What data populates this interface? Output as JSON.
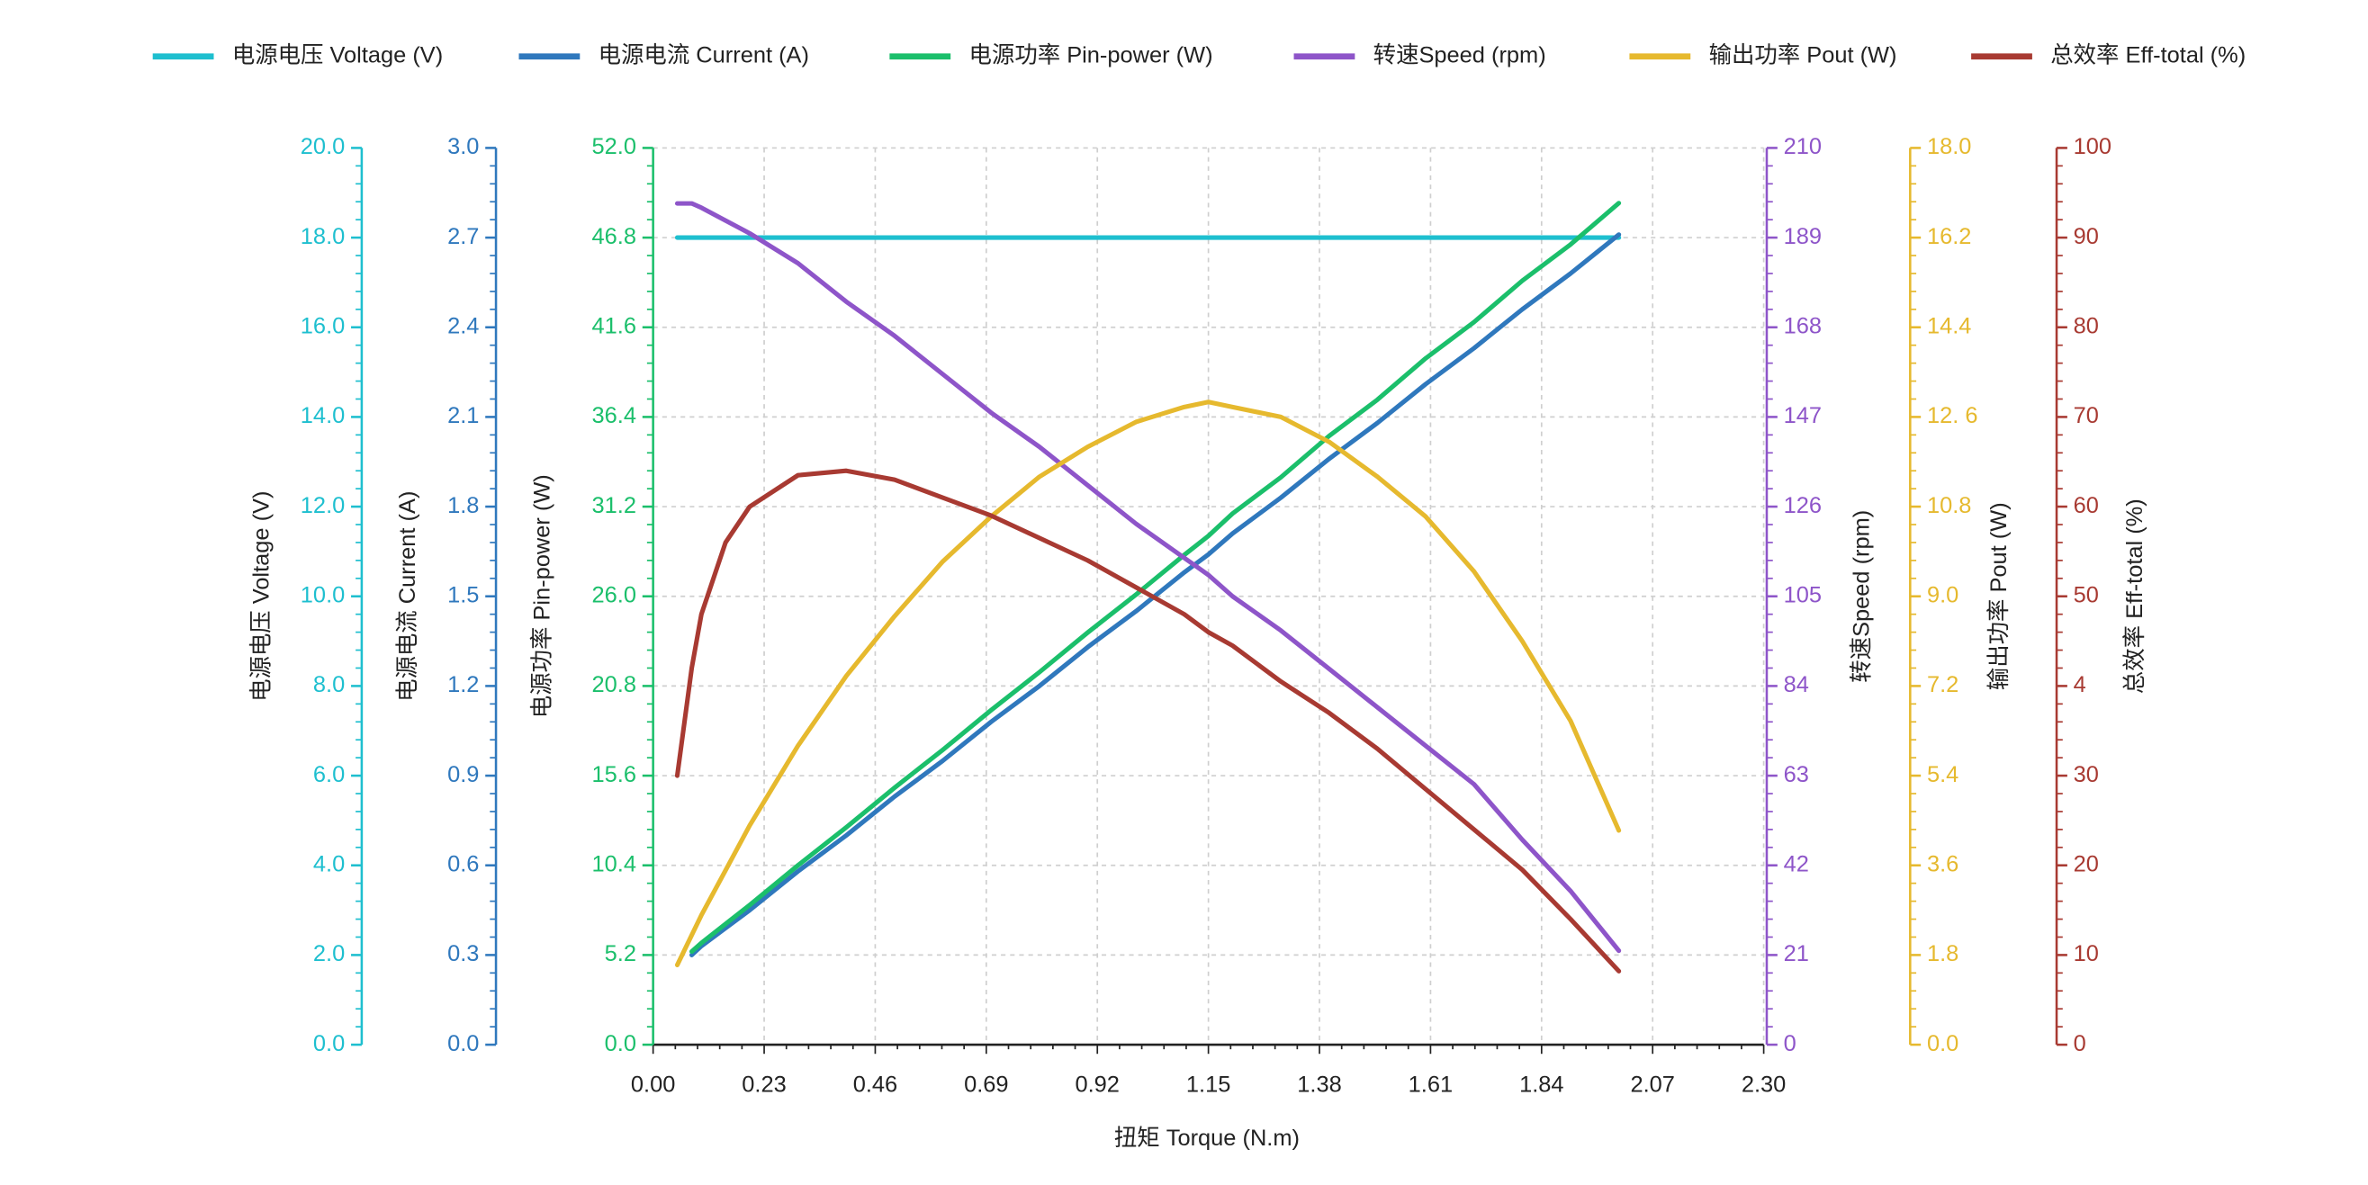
{
  "chart_data": {
    "type": "line",
    "x_label": "扭矩 Torque (N.m)",
    "x": [
      0.05,
      0.08,
      0.1,
      0.15,
      0.2,
      0.3,
      0.4,
      0.5,
      0.6,
      0.7,
      0.8,
      0.9,
      1.0,
      1.1,
      1.15,
      1.2,
      1.3,
      1.4,
      1.5,
      1.6,
      1.7,
      1.8,
      1.9,
      2.0
    ],
    "xlim": [
      0,
      2.3
    ],
    "xticks": [
      {
        "value": 0,
        "label": "0.00"
      },
      0.23,
      0.46,
      0.69,
      0.92,
      1.15,
      1.38,
      1.61,
      1.84,
      2.07,
      {
        "value": 2.3,
        "label": "2.30"
      }
    ],
    "grid": true,
    "legend": "top",
    "series": [
      {
        "name": "电源电压 Voltage (V)",
        "color": "#1ebfcf",
        "axis_label": "电源电压 Voltage (V)",
        "ylim": [
          0,
          20
        ],
        "yticks": [
          {
            "value": 0,
            "label": "0.0"
          },
          {
            "value": 2,
            "label": "2.0"
          },
          {
            "value": 4,
            "label": "4.0"
          },
          {
            "value": 6,
            "label": "6.0"
          },
          {
            "value": 8,
            "label": "8.0"
          },
          {
            "value": 10,
            "label": "10.0"
          },
          {
            "value": 12,
            "label": "12.0"
          },
          {
            "value": 14,
            "label": "14.0"
          },
          {
            "value": 16,
            "label": "16.0"
          },
          {
            "value": 18,
            "label": "18.0"
          },
          {
            "value": 20,
            "label": "20.0"
          }
        ],
        "values": [
          18,
          18,
          18,
          18,
          18,
          18,
          18,
          18,
          18,
          18,
          18,
          18,
          18,
          18,
          18,
          18,
          18,
          18,
          18,
          18,
          18,
          18,
          18,
          18
        ]
      },
      {
        "name": "电源电流 Current (A)",
        "color": "#2f78bd",
        "axis_label": "电源电流 Current (A)",
        "ylim": [
          0,
          3
        ],
        "yticks": [
          {
            "value": 0,
            "label": "0.0"
          },
          0.3,
          0.6,
          0.9,
          1.2,
          1.5,
          1.8,
          2.1,
          2.4,
          2.7,
          {
            "value": 3,
            "label": "3.0"
          }
        ],
        "values": [
          null,
          0.3,
          0.33,
          0.39,
          0.45,
          0.58,
          0.7,
          0.83,
          0.95,
          1.08,
          1.2,
          1.33,
          1.45,
          1.58,
          1.64,
          1.71,
          1.83,
          1.96,
          2.08,
          2.21,
          2.33,
          2.46,
          2.58,
          2.71
        ]
      },
      {
        "name": "电源功率 Pin-power (W)",
        "color": "#1bbf6b",
        "axis_label": "电源功率 Pin-power (W)",
        "ylim": [
          0,
          52
        ],
        "yticks": [
          {
            "value": 0,
            "label": "0.0"
          },
          5.2,
          10.4,
          15.6,
          20.8,
          {
            "value": 26,
            "label": "26.0"
          },
          31.2,
          36.4,
          41.6,
          46.8,
          {
            "value": 52,
            "label": "52.0"
          }
        ],
        "values": [
          null,
          5.4,
          5.9,
          7.0,
          8.1,
          10.4,
          12.6,
          14.9,
          17.1,
          19.4,
          21.6,
          23.9,
          26.1,
          28.4,
          29.5,
          30.8,
          32.9,
          35.3,
          37.4,
          39.8,
          41.9,
          44.3,
          46.4,
          48.8
        ]
      },
      {
        "name": "转速Speed (rpm)",
        "color": "#8e55c9",
        "axis_label": "转速Speed (rpm)",
        "ylim": [
          0,
          210
        ],
        "yticks": [
          0,
          21,
          42,
          63,
          84,
          105,
          126,
          147,
          168,
          189,
          210
        ],
        "values": [
          197,
          197,
          196,
          193,
          190,
          183,
          174,
          166,
          157,
          148,
          140,
          131,
          122,
          114,
          110,
          105,
          97,
          88,
          79,
          70,
          61,
          48,
          36,
          22
        ]
      },
      {
        "name": "输出功率 Pout (W)",
        "color": "#e6b92e",
        "axis_label": "输出功率 Pout (W)",
        "ylim": [
          0,
          18
        ],
        "yticks": [
          {
            "value": 0,
            "label": "0.0"
          },
          1.8,
          3.6,
          5.4,
          7.2,
          {
            "value": 9,
            "label": "9.0"
          },
          10.8,
          {
            "value": 12.6,
            "label": "12. 6"
          },
          14.4,
          16.2,
          {
            "value": 18,
            "label": "18.0"
          }
        ],
        "values": [
          1.6,
          2.2,
          2.6,
          3.5,
          4.4,
          6.0,
          7.4,
          8.6,
          9.7,
          10.6,
          11.4,
          12.0,
          12.5,
          12.8,
          12.9,
          12.8,
          12.6,
          12.1,
          11.4,
          10.6,
          9.5,
          8.1,
          6.5,
          4.3
        ]
      },
      {
        "name": "总效率 Eff-total (%)",
        "color": "#a83a32",
        "axis_label": "总效率 Eff-total (%)",
        "ylim": [
          0,
          100
        ],
        "yticks": [
          0,
          10,
          20,
          30,
          {
            "value": 40,
            "label": "4"
          },
          50,
          60,
          70,
          80,
          90,
          100
        ],
        "values": [
          30,
          42,
          48,
          56,
          60,
          63.5,
          64,
          63,
          61,
          59,
          56.5,
          54,
          51,
          48,
          46,
          44.5,
          40.5,
          37,
          33,
          28.5,
          24,
          19.5,
          14,
          8.2
        ]
      }
    ]
  }
}
